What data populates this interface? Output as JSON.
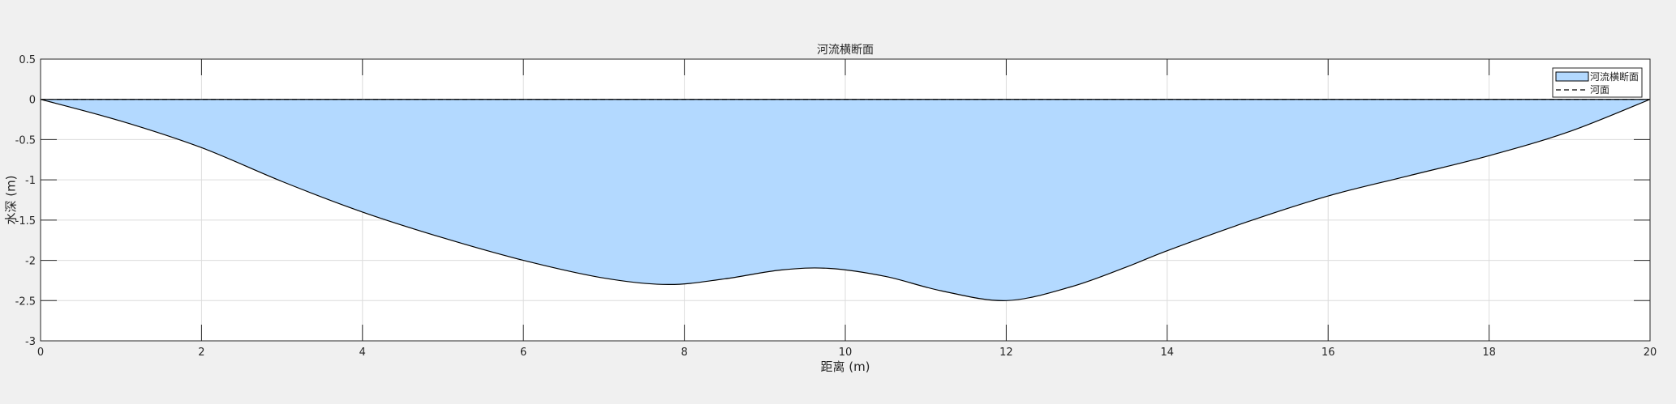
{
  "chart_data": {
    "type": "area",
    "title": "河流横断面",
    "xlabel": "距离 (m)",
    "ylabel": "水深 (m)",
    "xlim": [
      0,
      20
    ],
    "ylim": [
      -3,
      0.5
    ],
    "xticks": [
      0,
      2,
      4,
      6,
      8,
      10,
      12,
      14,
      16,
      18,
      20
    ],
    "yticks": [
      0.5,
      0,
      -0.5,
      -1,
      -1.5,
      -2,
      -2.5,
      -3
    ],
    "grid": true,
    "legend_position": "top-right",
    "series": [
      {
        "name": "河流横断面",
        "kind": "filled-area",
        "fill_color": "#b3d9ff",
        "edge_color": "#000000",
        "x": [
          0,
          1,
          2,
          3,
          4,
          5,
          6,
          7,
          7.8,
          8.5,
          9.2,
          9.8,
          10.5,
          11.2,
          12,
          12.8,
          13.5,
          14,
          15,
          16,
          17,
          18,
          19,
          20
        ],
        "y": [
          0,
          -0.27,
          -0.6,
          -1.02,
          -1.4,
          -1.72,
          -2.0,
          -2.22,
          -2.3,
          -2.23,
          -2.12,
          -2.1,
          -2.2,
          -2.38,
          -2.5,
          -2.33,
          -2.08,
          -1.88,
          -1.52,
          -1.2,
          -0.95,
          -0.7,
          -0.4,
          0
        ]
      },
      {
        "name": "河面",
        "kind": "dashed-line",
        "color": "#000000",
        "x": [
          0,
          20
        ],
        "y": [
          0,
          0
        ]
      }
    ]
  }
}
